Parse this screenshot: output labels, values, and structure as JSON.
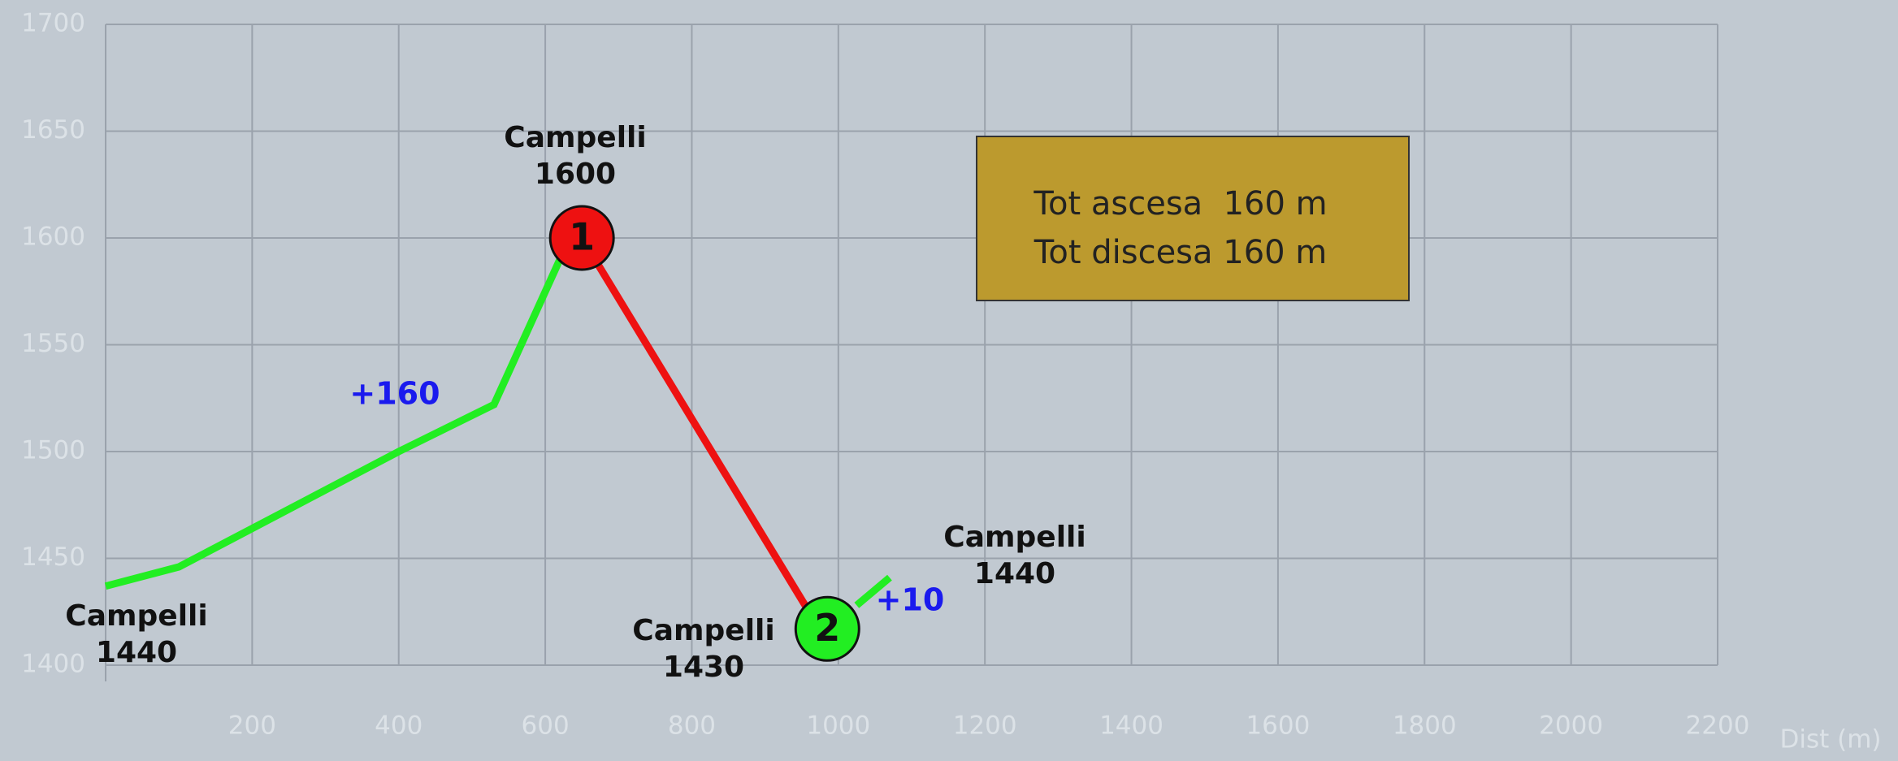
{
  "chart_data": {
    "type": "line",
    "xlim": [
      0,
      2200
    ],
    "xticks": [
      200,
      400,
      600,
      800,
      1000,
      1200,
      1400,
      1600,
      1800,
      2000,
      2200
    ],
    "ylim": [
      1400,
      1700
    ],
    "yticks": [
      1400,
      1450,
      1500,
      1550,
      1600,
      1650,
      1700
    ],
    "grid": true,
    "x_label": "Dist (m)",
    "series": [
      {
        "color": "#22ee22",
        "x": [
          0,
          100,
          400,
          530,
          620,
          650
        ],
        "values": [
          1437,
          1446,
          1500,
          1522,
          1590,
          1600
        ]
      },
      {
        "color": "#ee1111",
        "x": [
          650,
          960
        ],
        "values": [
          1600,
          1425
        ]
      },
      {
        "color": "#22ee22",
        "x": [
          1025,
          1070
        ],
        "values": [
          1428,
          1441
        ]
      }
    ],
    "markers": [
      {
        "label": "1",
        "x": 650,
        "value": 1600,
        "color": "#ee1111"
      },
      {
        "label": "2",
        "x": 985,
        "value": 1417,
        "color": "#22ee22"
      }
    ],
    "annotations": [
      [
        "Campelli",
        "1600"
      ],
      [
        "Campelli",
        "1440"
      ],
      [
        "Campelli",
        "1430"
      ],
      [
        "Campelli",
        "1440"
      ]
    ],
    "gains": [
      "+160",
      "+10"
    ],
    "summary": [
      "Tot ascesa  160 m",
      "Tot discesa 160 m"
    ]
  }
}
